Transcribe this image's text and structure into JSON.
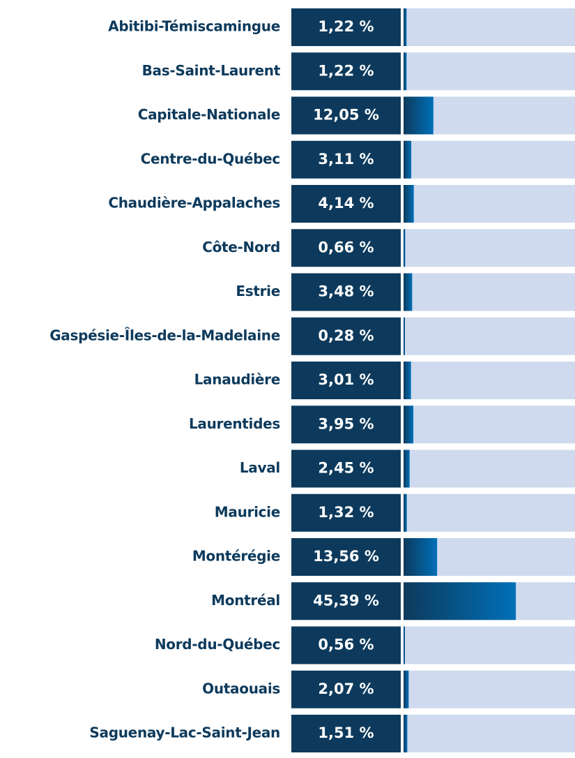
{
  "chart_data": {
    "type": "bar",
    "orientation": "horizontal",
    "categories": [
      "Abitibi-Témiscamingue",
      "Bas-Saint-Laurent",
      "Capitale-Nationale",
      "Centre-du-Québec",
      "Chaudière-Appalaches",
      "Côte-Nord",
      "Estrie",
      "Gaspésie-Îles-de-la-Madelaine",
      "Lanaudière",
      "Laurentides",
      "Laval",
      "Mauricie",
      "Montérégie",
      "Montréal",
      "Nord-du-Québec",
      "Outaouais",
      "Saguenay-Lac-Saint-Jean"
    ],
    "values": [
      1.22,
      1.22,
      12.05,
      3.11,
      4.14,
      0.66,
      3.48,
      0.28,
      3.01,
      3.95,
      2.45,
      1.32,
      13.56,
      45.39,
      0.56,
      2.07,
      1.51
    ],
    "value_labels": [
      "1,22 %",
      "1,22 %",
      "12,05 %",
      "3,11 %",
      "4,14 %",
      "0,66 %",
      "3,48 %",
      "0,28 %",
      "3,01 %",
      "3,95 %",
      "2,45 %",
      "1,32 %",
      "13,56 %",
      "45,39 %",
      "0,56 %",
      "2,07 %",
      "1,51 %"
    ],
    "color": "#0d3a5c",
    "gradient_color": "#0070b8",
    "track_color": "#cfdaee",
    "label_box_color": "#0d3a5c"
  }
}
